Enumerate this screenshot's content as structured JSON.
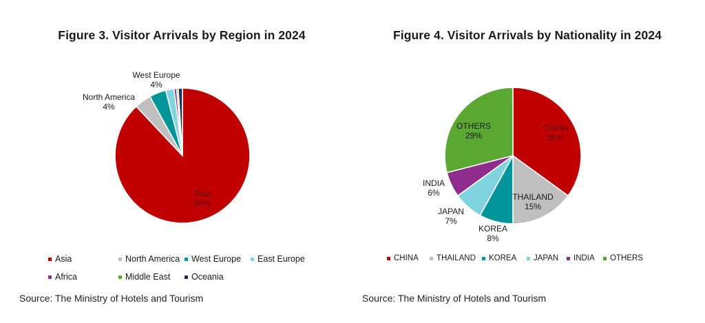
{
  "figures": [
    {
      "title": "Figure 3. Visitor Arrivals by Region in 2024",
      "source": "Source: The Ministry of Hotels and Tourism"
    },
    {
      "title": "Figure 4. Visitor Arrivals by Nationality in 2024",
      "source": "Source: The Ministry of Hotels and Tourism"
    }
  ],
  "chart_data": [
    {
      "type": "pie",
      "title": "Figure 3. Visitor Arrivals by Region in 2024",
      "slices": [
        {
          "label": "Asia",
          "value": 88,
          "color": "#c00000",
          "data_label": "Asia",
          "pct_label": "88%"
        },
        {
          "label": "North America",
          "value": 4,
          "color": "#bfbfbf",
          "data_label": "North America",
          "pct_label": "4%"
        },
        {
          "label": "West Europe",
          "value": 4,
          "color": "#00959a",
          "data_label": "West Europe",
          "pct_label": "4%"
        },
        {
          "label": "East Europe",
          "value": 2,
          "color": "#7fd4df",
          "data_label": "",
          "pct_label": ""
        },
        {
          "label": "Africa",
          "value": 0.6,
          "color": "#8e2d8e",
          "data_label": "",
          "pct_label": ""
        },
        {
          "label": "Middle East",
          "value": 0.4,
          "color": "#5aa832",
          "data_label": "",
          "pct_label": ""
        },
        {
          "label": "Oceania",
          "value": 1,
          "color": "#1f2d4f",
          "data_label": "",
          "pct_label": ""
        }
      ],
      "legend": [
        "Asia",
        "North America",
        "West Europe",
        "East Europe",
        "Africa",
        "Middle East",
        "Oceania"
      ],
      "legend_placement": "bottom"
    },
    {
      "type": "pie",
      "title": "Figure 4. Visitor Arrivals by Nationality in 2024",
      "slices": [
        {
          "label": "CHINA",
          "value": 35,
          "color": "#c00000",
          "data_label": "CHINA",
          "pct_label": "35%"
        },
        {
          "label": "THAILAND",
          "value": 15,
          "color": "#bfbfbf",
          "data_label": "THAILAND",
          "pct_label": "15%"
        },
        {
          "label": "KOREA",
          "value": 8,
          "color": "#00959a",
          "data_label": "KOREA",
          "pct_label": "8%"
        },
        {
          "label": "JAPAN",
          "value": 7,
          "color": "#7fd4df",
          "data_label": "JAPAN",
          "pct_label": "7%"
        },
        {
          "label": "INDIA",
          "value": 6,
          "color": "#8e2d8e",
          "data_label": "INDIA",
          "pct_label": "6%"
        },
        {
          "label": "OTHERS",
          "value": 29,
          "color": "#5aa832",
          "data_label": "OTHERS",
          "pct_label": "29%"
        }
      ],
      "legend": [
        "CHINA",
        "THAILAND",
        "KOREA",
        "JAPAN",
        "INDIA",
        "OTHERS"
      ],
      "legend_placement": "bottom"
    }
  ]
}
